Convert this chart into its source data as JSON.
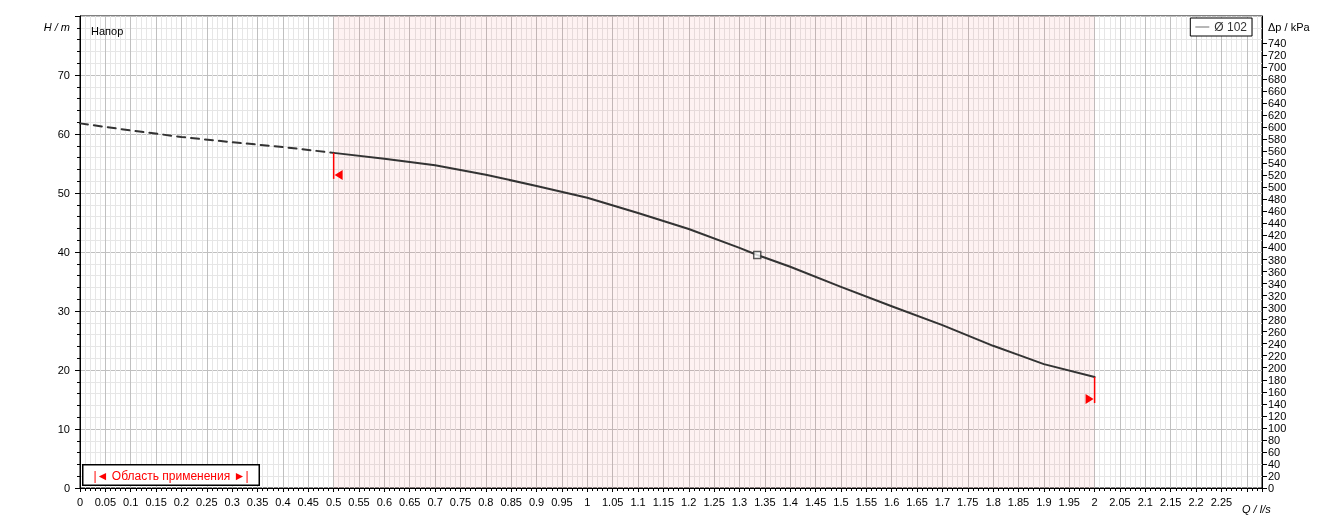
{
  "chart_data": {
    "type": "line",
    "title": "Напор",
    "xlabel": "Q / l/s",
    "ylabel": "H / m",
    "y2label": "Δp / kPa",
    "xlim": [
      0,
      2.33
    ],
    "ylim": [
      0,
      80
    ],
    "y2lim": [
      0,
      785
    ],
    "xticks": [
      0,
      0.05,
      0.1,
      0.15,
      0.2,
      0.25,
      0.3,
      0.35,
      0.4,
      0.45,
      0.5,
      0.55,
      0.6,
      0.65,
      0.7,
      0.75,
      0.8,
      0.85,
      0.9,
      0.95,
      1,
      1.05,
      1.1,
      1.15,
      1.2,
      1.25,
      1.3,
      1.35,
      1.4,
      1.45,
      1.5,
      1.55,
      1.6,
      1.65,
      1.7,
      1.75,
      1.8,
      1.85,
      1.9,
      1.95,
      2,
      2.05,
      2.1,
      2.15,
      2.2,
      2.25
    ],
    "yticks": [
      0,
      10,
      20,
      30,
      40,
      50,
      60,
      70
    ],
    "y2ticks": [
      0,
      20,
      40,
      60,
      80,
      100,
      120,
      140,
      160,
      180,
      200,
      220,
      240,
      260,
      280,
      300,
      320,
      340,
      360,
      380,
      400,
      420,
      440,
      460,
      480,
      500,
      520,
      540,
      560,
      580,
      600,
      620,
      640,
      660,
      680,
      700,
      720,
      740
    ],
    "grid": true,
    "legend": "top right",
    "series": [
      {
        "line_style": "dashed",
        "marker": "none",
        "color": "#333333",
        "x": [
          0,
          0.1,
          0.2,
          0.3,
          0.4,
          0.5
        ],
        "values": [
          61.8,
          60.6,
          59.5,
          58.6,
          57.8,
          56.8
        ]
      },
      {
        "name": "Ø 102",
        "line_style": "solid",
        "marker": "none",
        "color": "#333333",
        "x": [
          0.5,
          0.6,
          0.7,
          0.8,
          0.9,
          1.0,
          1.1,
          1.2,
          1.3,
          1.335,
          1.4,
          1.5,
          1.6,
          1.7,
          1.8,
          1.9,
          2.0
        ],
        "values": [
          56.8,
          55.8,
          54.7,
          53.1,
          51.2,
          49.2,
          46.6,
          43.9,
          40.7,
          39.5,
          37.5,
          34.1,
          30.8,
          27.6,
          24.1,
          21.0,
          18.8
        ]
      },
      {
        "type": "scatter",
        "marker": "square",
        "color": "#333333",
        "x": [
          1.335
        ],
        "values": [
          39.5
        ]
      }
    ],
    "bands": [
      {
        "axis": "x",
        "from": 0.5,
        "to": 2.0,
        "label": "|◄ Область применения ►|",
        "color": "#ff0000"
      }
    ]
  }
}
